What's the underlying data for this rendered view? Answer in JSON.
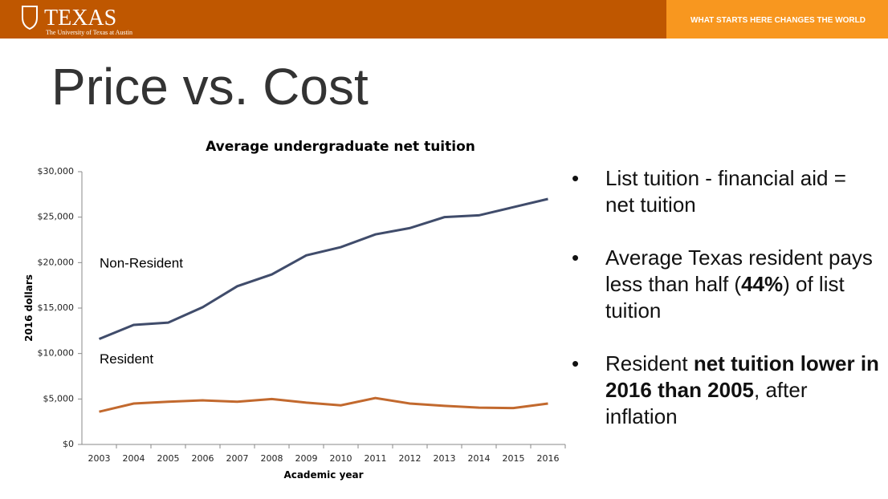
{
  "header": {
    "logo_text": "TEXAS",
    "logo_subtext": "The University of Texas at Austin",
    "tagline": "WHAT STARTS HERE CHANGES THE WORLD"
  },
  "slide_title": "Price vs. Cost",
  "chart_data": {
    "type": "line",
    "title": "Average undergraduate net tuition",
    "x_label": "Academic year",
    "y_label": "2016 dollars",
    "categories": [
      "2003",
      "2004",
      "2005",
      "2006",
      "2007",
      "2008",
      "2009",
      "2010",
      "2011",
      "2012",
      "2013",
      "2014",
      "2015",
      "2016"
    ],
    "series": [
      {
        "name": "Non-Resident",
        "color": "#404c6b",
        "values": [
          11600,
          13150,
          13400,
          15100,
          17400,
          18700,
          20800,
          21700,
          23100,
          23800,
          25000,
          25200,
          26100,
          27000
        ]
      },
      {
        "name": "Resident",
        "color": "#c2692e",
        "values": [
          3600,
          4500,
          4700,
          4850,
          4700,
          5000,
          4600,
          4300,
          5100,
          4500,
          4250,
          4050,
          4000,
          4500
        ]
      }
    ],
    "ylim": [
      0,
      30000
    ],
    "yticks": [
      {
        "value": 0,
        "label": "$0"
      },
      {
        "value": 5000,
        "label": "$5,000"
      },
      {
        "value": 10000,
        "label": "$10,000"
      },
      {
        "value": 15000,
        "label": "$15,000"
      },
      {
        "value": 20000,
        "label": "$20,000"
      },
      {
        "value": 25000,
        "label": "$25,000"
      },
      {
        "value": 30000,
        "label": "$30,000"
      }
    ],
    "grid": false
  },
  "bullets": [
    [
      {
        "text": "List tuition - financial aid = net tuition",
        "bold": false
      }
    ],
    [
      {
        "text": "Average Texas resident pays less than half (",
        "bold": false
      },
      {
        "text": "44%",
        "bold": true
      },
      {
        "text": ") of list tuition",
        "bold": false
      }
    ],
    [
      {
        "text": "Resident ",
        "bold": false
      },
      {
        "text": "net tuition lower in 2016 than 2005",
        "bold": true
      },
      {
        "text": ", after inflation",
        "bold": false
      }
    ]
  ]
}
